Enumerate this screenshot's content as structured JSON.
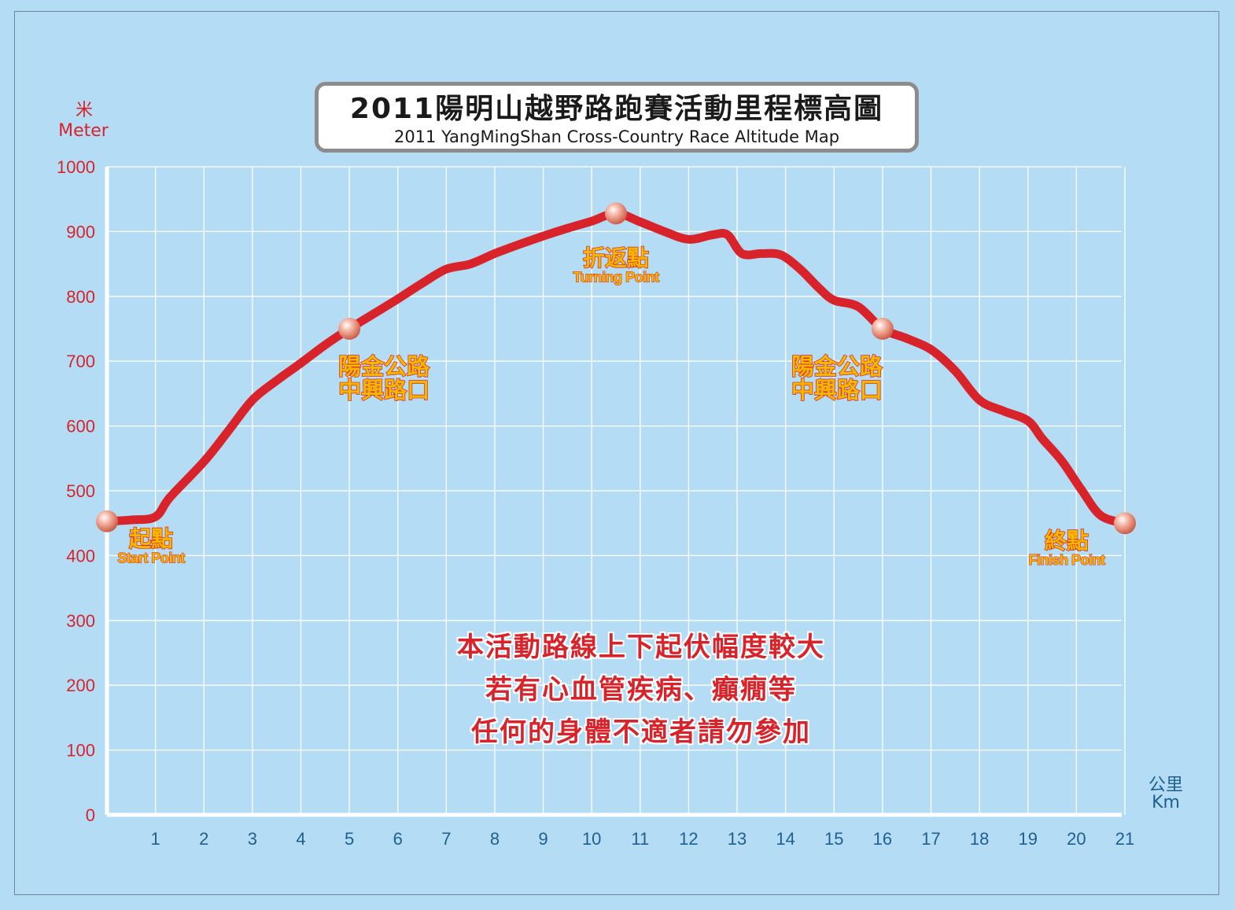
{
  "title": {
    "zh": "2011陽明山越野路跑賽活動里程標高圖",
    "en": "2011 YangMingShan Cross-Country Race Altitude Map"
  },
  "axes": {
    "y_label_zh": "米",
    "y_label_en": "Meter",
    "x_label_zh": "公里",
    "x_label_en": "Km"
  },
  "notes": [
    "本活動路線上下起伏幅度較大",
    "若有心血管疾病、癲癇等",
    "任何的身體不適者請勿參加"
  ],
  "colors": {
    "background": "#b4ddf5",
    "line": "#d8232a",
    "marker": "#f0a08e",
    "label_fill": "#f7b700",
    "x_axis_text": "#1f5f8f"
  },
  "chart_data": {
    "type": "line",
    "title": "2011 YangMingShan Cross-Country Race Altitude Map",
    "xlabel": "Km",
    "ylabel": "Meter",
    "xlim": [
      0,
      21
    ],
    "ylim": [
      0,
      1000
    ],
    "grid": true,
    "x_ticks": [
      "1",
      "2",
      "3",
      "4",
      "5",
      "6",
      "7",
      "8",
      "9",
      "10",
      "11",
      "12",
      "13",
      "14",
      "15",
      "16",
      "17",
      "18",
      "19",
      "20",
      "21"
    ],
    "y_ticks": [
      "0",
      "100",
      "200",
      "300",
      "400",
      "500",
      "600",
      "700",
      "800",
      "900",
      "1000"
    ],
    "series": [
      {
        "x": [
          0,
          0.5,
          1,
          1.3,
          2,
          2.5,
          3,
          3.5,
          4,
          4.5,
          5,
          5.5,
          6,
          6.5,
          7,
          7.5,
          8,
          8.5,
          9,
          9.5,
          10,
          10.5,
          11,
          11.5,
          12,
          12.5,
          12.8,
          13.1,
          13.5,
          13.9,
          14.3,
          14.7,
          15,
          15.5,
          16,
          16.5,
          17,
          17.5,
          18,
          18.5,
          19,
          19.3,
          19.7,
          20.1,
          20.5,
          21
        ],
        "y": [
          453,
          455,
          460,
          490,
          545,
          592,
          640,
          670,
          697,
          725,
          750,
          773,
          796,
          820,
          842,
          850,
          866,
          880,
          893,
          905,
          916,
          928,
          915,
          900,
          888,
          895,
          895,
          866,
          866,
          864,
          842,
          812,
          794,
          784,
          750,
          735,
          718,
          685,
          640,
          623,
          608,
          580,
          546,
          502,
          462,
          450
        ]
      }
    ],
    "points_of_interest": [
      {
        "km": 0,
        "alt": 453,
        "zh": "起點",
        "en": "Start Point",
        "label_side": "below-right"
      },
      {
        "km": 5,
        "alt": 750,
        "zh_lines": [
          "陽金公路",
          "中興路口"
        ],
        "label_side": "below-right"
      },
      {
        "km": 10.5,
        "alt": 928,
        "zh": "折返點",
        "en": "Turning Point",
        "label_side": "below"
      },
      {
        "km": 16,
        "alt": 750,
        "zh_lines": [
          "陽金公路",
          "中興路口"
        ],
        "label_side": "below-left"
      },
      {
        "km": 21,
        "alt": 450,
        "zh": "終點",
        "en": "Finish Point",
        "label_side": "below-left"
      }
    ]
  }
}
